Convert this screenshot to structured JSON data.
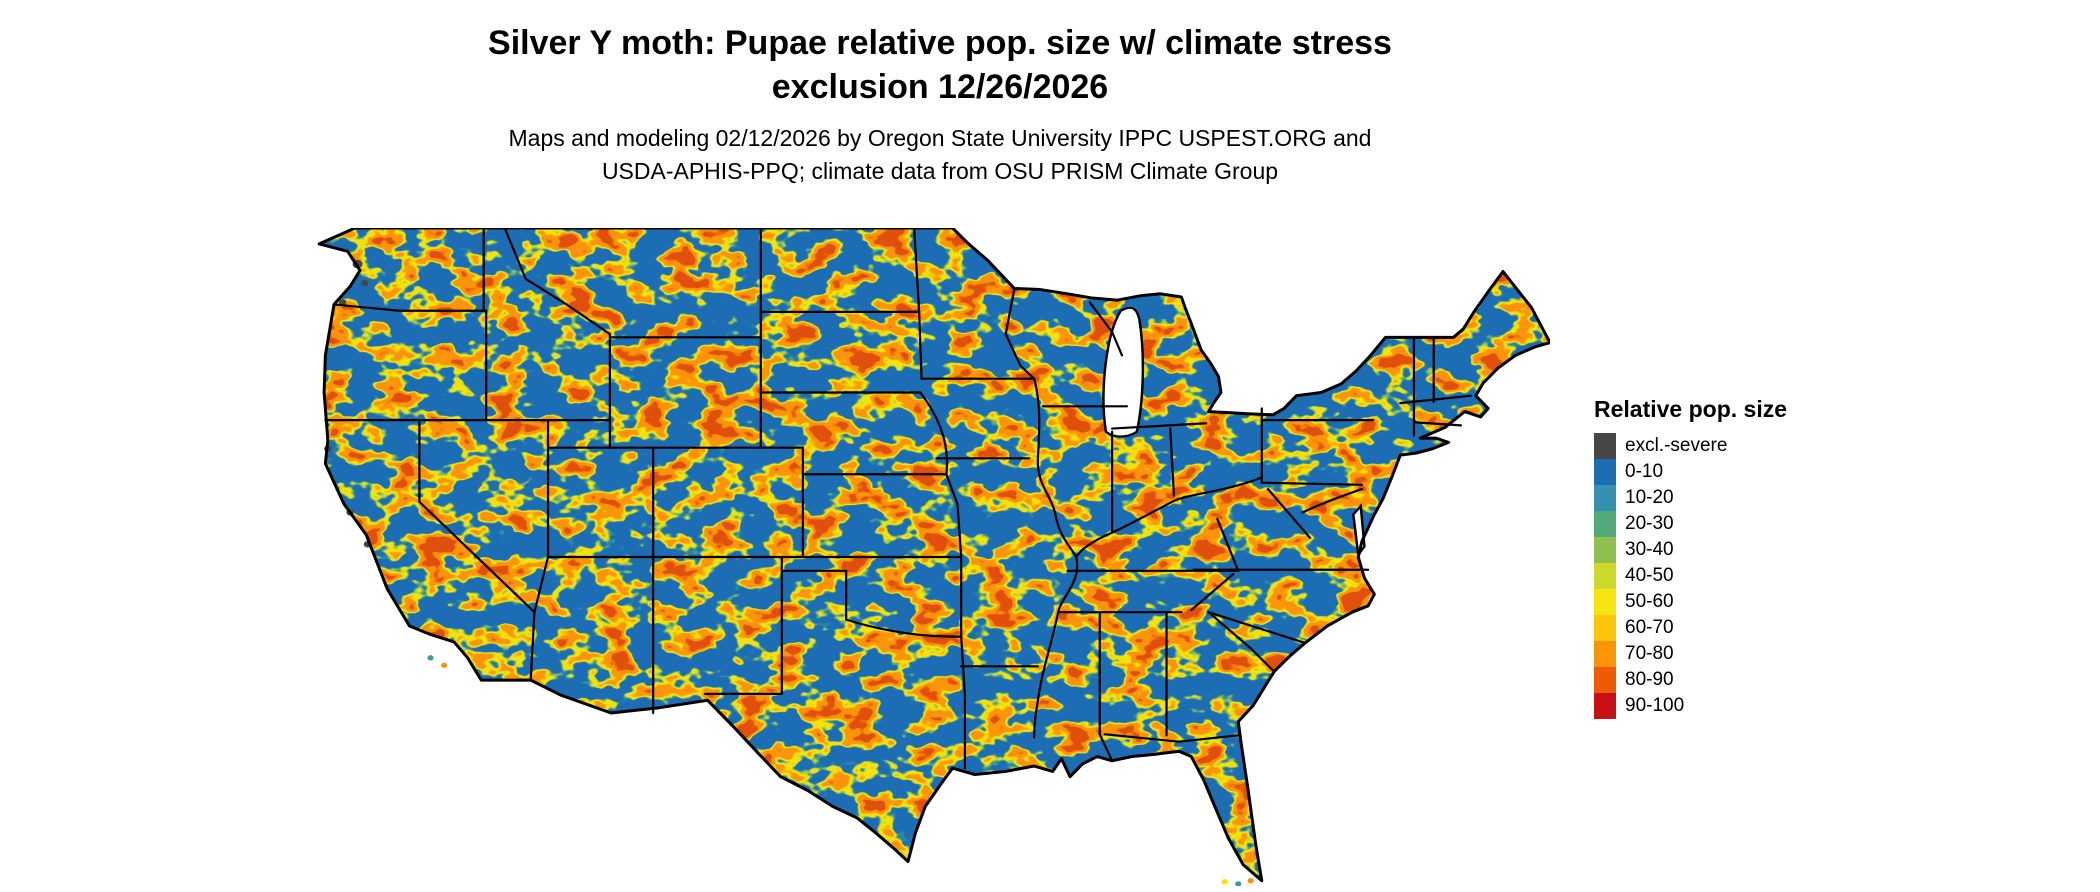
{
  "header": {
    "title_line1": "Silver Y moth: Pupae relative pop. size w/ climate stress",
    "title_line2": "exclusion 12/26/2026",
    "subtitle_line1": "Maps and modeling 02/12/2026 by Oregon State University IPPC USPEST.ORG and",
    "subtitle_line2": "USDA-APHIS-PPQ; climate data from OSU PRISM Climate Group"
  },
  "map": {
    "region": "Contiguous United States",
    "colors": {
      "base": "#1c6db4",
      "fringe": "#3a9b9b",
      "mid": "#f2e20e",
      "high": "#fb9407",
      "severe": "#e14f07",
      "excluded": "#474747",
      "lake": "#ffffff",
      "border": "#000000"
    }
  },
  "legend": {
    "title": "Relative pop. size",
    "entries": [
      {
        "label": "excl.-severe",
        "color": "#474747"
      },
      {
        "label": "0-10",
        "color": "#1c6db4"
      },
      {
        "label": "10-20",
        "color": "#3690b0"
      },
      {
        "label": "20-30",
        "color": "#52a876"
      },
      {
        "label": "30-40",
        "color": "#8fc04d"
      },
      {
        "label": "40-50",
        "color": "#ccd929"
      },
      {
        "label": "50-60",
        "color": "#f4e410"
      },
      {
        "label": "60-70",
        "color": "#fcc40a"
      },
      {
        "label": "70-80",
        "color": "#fb9407"
      },
      {
        "label": "80-90",
        "color": "#ef5a06"
      },
      {
        "label": "90-100",
        "color": "#c81114"
      }
    ]
  }
}
